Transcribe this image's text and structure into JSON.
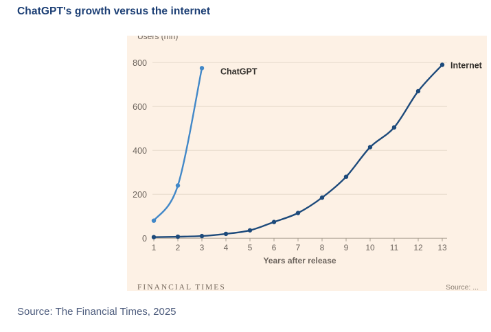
{
  "page": {
    "title": "ChatGPT's growth versus the internet",
    "caption": "Source: The Financial Times, 2025"
  },
  "chart_data": {
    "type": "line",
    "y_axis_label": "Users (mn)",
    "xlabel": "Years after release",
    "yticks": [
      0,
      200,
      400,
      600,
      800
    ],
    "xticks": [
      1,
      2,
      3,
      4,
      5,
      6,
      7,
      8,
      9,
      10,
      11,
      12,
      13
    ],
    "ylim": [
      0,
      800
    ],
    "xlim": [
      1,
      13
    ],
    "grid": "horizontal",
    "background_color": "#fdf1e5",
    "series": [
      {
        "name": "ChatGPT",
        "color": "#4288c8",
        "x": [
          1,
          2,
          3
        ],
        "values": [
          80,
          240,
          775
        ]
      },
      {
        "name": "Internet",
        "color": "#1d4a7b",
        "x": [
          1,
          2,
          3,
          4,
          5,
          6,
          7,
          8,
          9,
          10,
          11,
          12,
          13
        ],
        "values": [
          5,
          7,
          10,
          20,
          36,
          74,
          115,
          185,
          280,
          415,
          505,
          670,
          790
        ]
      }
    ],
    "footer_left": "FINANCIAL TIMES",
    "footer_right": "Source: ..."
  },
  "colors": {
    "title": "#1b3e74",
    "caption": "#4d5c7d",
    "tick_label": "#6b635c",
    "gridline": "#e6dacb",
    "axis_line": "#a89d90",
    "series_label": "#33302c",
    "footer": "#776a5e"
  }
}
